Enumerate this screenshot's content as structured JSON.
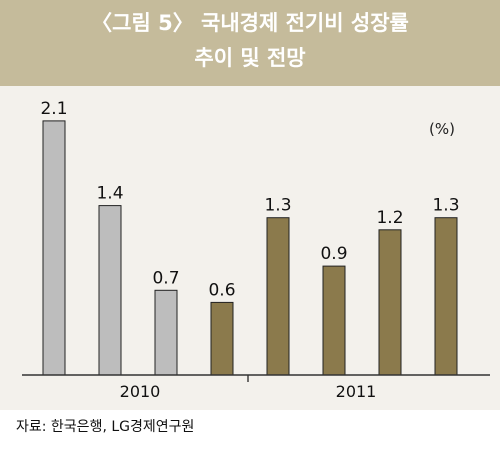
{
  "title_line1": "〈그림 5〉 국내경제 전기비 성장률",
  "title_line2": "추이 및 전망",
  "unit_label": "(%)",
  "source": "자료: 한국은행, LG경제연구원",
  "colors": {
    "title_bg": "#c5bb9b",
    "plot_bg": "#f3f1ec",
    "bar_2010": "#bdbdbd",
    "bar_2010_forecast": "#8b7a4c",
    "bar_2011": "#8b7a4c"
  },
  "chart_data": {
    "type": "bar",
    "title": "〈그림 5〉 국내경제 전기비 성장률 추이 및 전망",
    "ylabel": "(%)",
    "ylim": [
      0,
      2.3
    ],
    "grid": false,
    "groups": [
      "2010",
      "2011"
    ],
    "values": [
      {
        "group": "2010",
        "value": 2.1,
        "label": "2.1",
        "kind": "actual"
      },
      {
        "group": "2010",
        "value": 1.4,
        "label": "1.4",
        "kind": "actual"
      },
      {
        "group": "2010",
        "value": 0.7,
        "label": "0.7",
        "kind": "actual"
      },
      {
        "group": "2010",
        "value": 0.6,
        "label": "0.6",
        "kind": "forecast"
      },
      {
        "group": "2011",
        "value": 1.3,
        "label": "1.3",
        "kind": "forecast"
      },
      {
        "group": "2011",
        "value": 0.9,
        "label": "0.9",
        "kind": "forecast"
      },
      {
        "group": "2011",
        "value": 1.2,
        "label": "1.2",
        "kind": "forecast"
      },
      {
        "group": "2011",
        "value": 1.3,
        "label": "1.3",
        "kind": "forecast"
      }
    ]
  }
}
